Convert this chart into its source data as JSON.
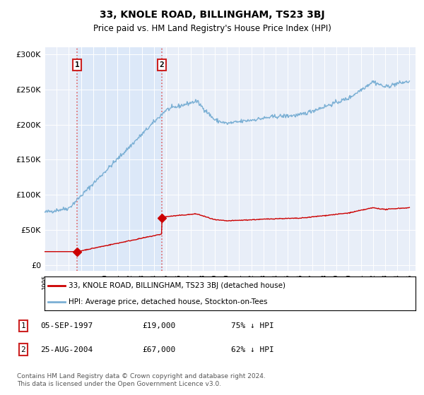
{
  "title": "33, KNOLE ROAD, BILLINGHAM, TS23 3BJ",
  "subtitle": "Price paid vs. HM Land Registry's House Price Index (HPI)",
  "legend_label_red": "33, KNOLE ROAD, BILLINGHAM, TS23 3BJ (detached house)",
  "legend_label_blue": "HPI: Average price, detached house, Stockton-on-Tees",
  "footnote": "Contains HM Land Registry data © Crown copyright and database right 2024.\nThis data is licensed under the Open Government Licence v3.0.",
  "table_rows": [
    {
      "num": "1",
      "date": "05-SEP-1997",
      "price": "£19,000",
      "hpi": "75% ↓ HPI"
    },
    {
      "num": "2",
      "date": "25-AUG-2004",
      "price": "£67,000",
      "hpi": "62% ↓ HPI"
    }
  ],
  "sale1_year": 1997.67,
  "sale1_price": 19000,
  "sale2_year": 2004.65,
  "sale2_price": 67000,
  "ylim": [
    0,
    300000
  ],
  "xlim": [
    1995.0,
    2025.5
  ],
  "yticks": [
    0,
    50000,
    100000,
    150000,
    200000,
    250000,
    300000
  ],
  "background_color": "#ffffff",
  "plot_bg_color": "#e8eef8",
  "shade_color": "#dce8f8",
  "red_color": "#cc0000",
  "blue_color": "#7aafd4",
  "dashed_color": "#e06060"
}
